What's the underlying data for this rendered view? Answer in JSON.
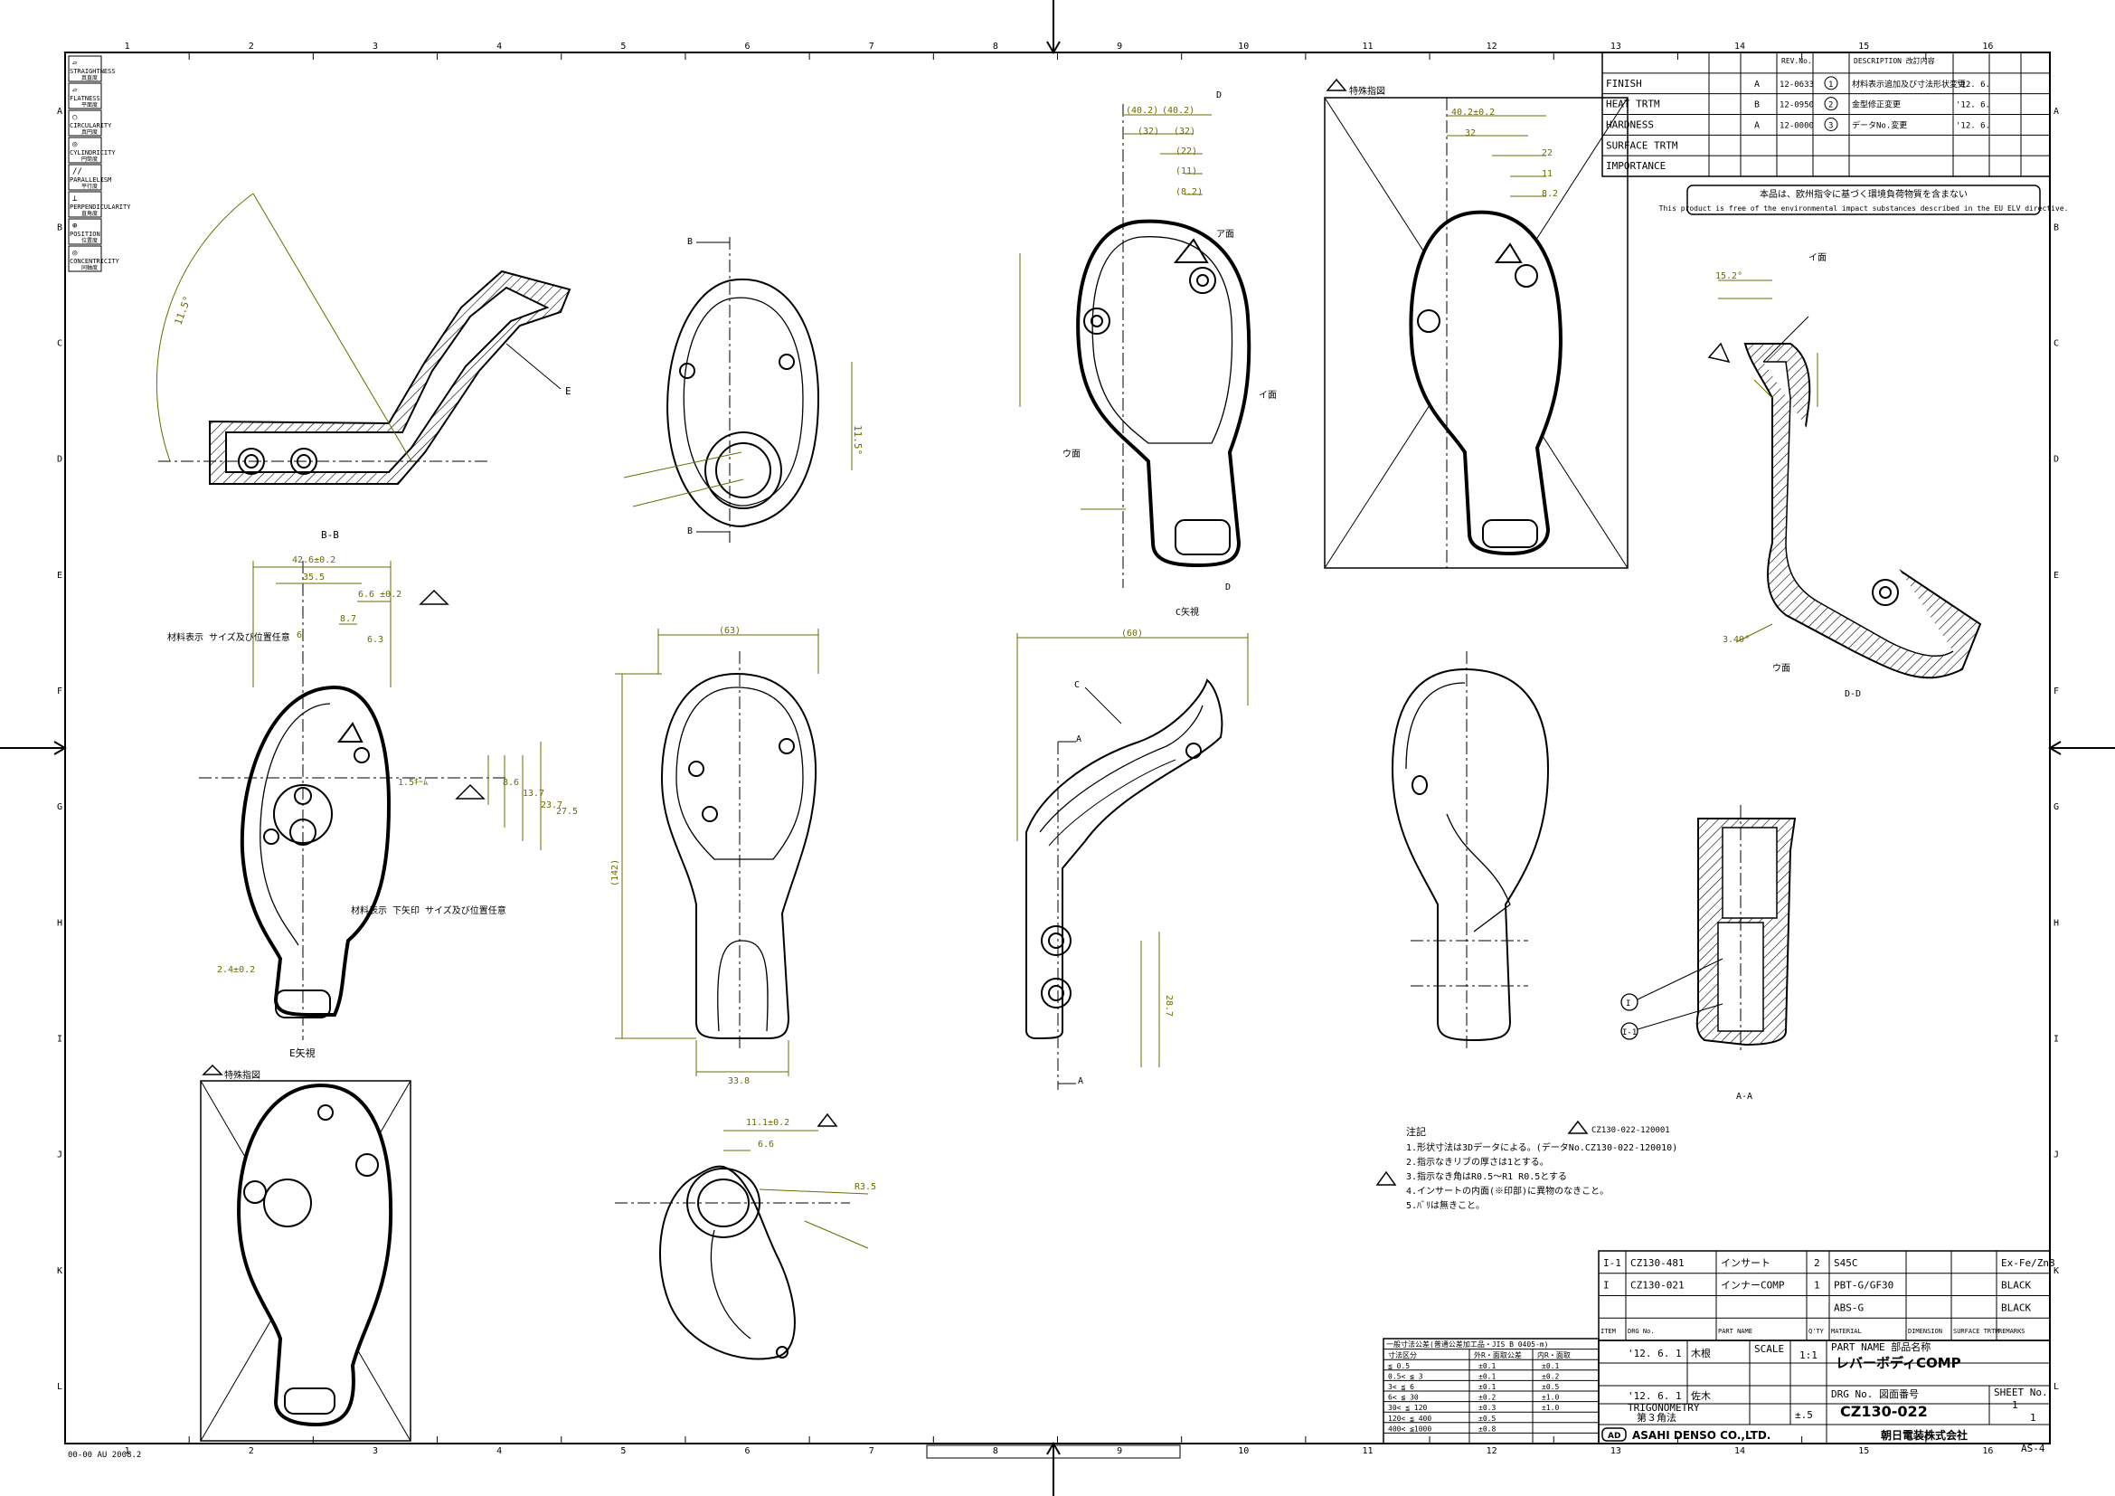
{
  "frame": {
    "col_numbers": [
      "1",
      "2",
      "3",
      "4",
      "5",
      "6",
      "7",
      "8",
      "9",
      "10",
      "11",
      "12",
      "13",
      "14",
      "15",
      "16"
    ],
    "row_letters": [
      "A",
      "B",
      "C",
      "D",
      "E",
      "F",
      "G",
      "H",
      "I",
      "J",
      "K",
      "L"
    ],
    "corner_note": "00-00  AU 2008.2"
  },
  "symbols": [
    {
      "sym": "▱",
      "label": "STRAIGHTNESS",
      "jp": "真直度"
    },
    {
      "sym": "▱",
      "label": "FLATNESS",
      "jp": "平面度"
    },
    {
      "sym": "○",
      "label": "CIRCULARITY",
      "jp": "真円度"
    },
    {
      "sym": "◎",
      "label": "CYLINDRICITY",
      "jp": "円筒度"
    },
    {
      "sym": "//",
      "label": "PARALLELISM",
      "jp": "平行度"
    },
    {
      "sym": "⊥",
      "label": "PERPENDICULARITY",
      "jp": "直角度"
    },
    {
      "sym": "⊕",
      "label": "POSITION",
      "jp": "位置度"
    },
    {
      "sym": "◎",
      "label": "CONCENTRICITY",
      "jp": "同軸度"
    }
  ],
  "revision": {
    "headers": [
      "REV.No.",
      "DESCRIPTION 改訂内容"
    ],
    "left_labels": [
      "FINISH",
      "HEAT TRTM",
      "HARDNESS",
      "SURFACE TRTM",
      "IMPORTANCE"
    ],
    "rows": [
      {
        "mark": "A",
        "no": "12-0633",
        "circle": "1",
        "text": "材料表示追加及び寸法形状変更",
        "date": "'12. 6."
      },
      {
        "mark": "B",
        "no": "12-0950",
        "circle": "2",
        "text": "金型修正変更",
        "date": "'12. 6."
      },
      {
        "mark": "A",
        "no": "12-0000",
        "circle": "3",
        "text": "データNo.変更",
        "date": "'12. 6."
      }
    ]
  },
  "env_note": {
    "jp": "本品は、欧州指令に基づく環境負荷物質を含まない",
    "en": "This product is free of the environmental impact substances described in the EU ELV directive."
  },
  "labels": {
    "section_bb": "B-B",
    "section_dd": "D-D",
    "section_aa": "A-A",
    "view_e": "E矢視",
    "view_c": "C矢視",
    "detail": "特殊指図",
    "cut_b": "B",
    "cut_d": "D",
    "cut_a": "A",
    "cut_c": "C",
    "cut_e": "E",
    "cut_a2": "A",
    "area_a": "ア面",
    "area_i": "イ面",
    "area_u": "ウ面",
    "note_material": "材料表示 サイズ及び位置任意",
    "note_material2": "材料表示 下矢印 サイズ及び位置任意",
    "balloon1": "I",
    "balloon2": "I-1",
    "tri_ref": "CZ130-022-120001"
  },
  "dims": {
    "a1": "(40.2)",
    "a2": "(40.2)",
    "a3": "(32)",
    "a4": "(32)",
    "a5": "(22)",
    "a6": "(11)",
    "a7": "(8.2)",
    "b1": "40.2±0.2",
    "b2": "40.2±0.2",
    "b3": "32",
    "b4": "22",
    "b5": "22",
    "b6": "11",
    "b7": "8.2",
    "c1": "42.6±0.2",
    "c2": "35.5",
    "c3": "35.5",
    "c4": "6.6 ±0.2",
    "c5": "8.7",
    "c6": "6.3",
    "c7": "6",
    "c8": "1.5ｷｰﾑ",
    "c9": "8.6",
    "c10": "13.7",
    "c11": "23.7",
    "c12": "27.5",
    "c13": "2.4±0.2",
    "d1": "(63)",
    "d2": "(63)",
    "d3": "(142)",
    "d4": "(142)",
    "d5": "33.8",
    "d6": "33.8",
    "e1": "(60)",
    "e2": "(60)",
    "e3": "28.7",
    "e4": "28.7",
    "f1": "11.1±0.2",
    "f2": "6.6",
    "f3": "R3.5",
    "f4": "11.5°",
    "f5": "11.5°",
    "f6": "15.2°",
    "f7": "3.40°"
  },
  "notes": {
    "title": "注記",
    "lines": [
      "1.形状寸法は3Dデータによる。(データNo.CZ130-022-120010)",
      "2.指示なきリブの厚さは1とする。",
      "3.指示なき角はR0.5〜R1  R0.5とする",
      "4.インサートの内面(※印部)に異物のなきこと。",
      "5.ﾊﾞﾘは無きこと。"
    ]
  },
  "tolerance": {
    "title": "一般寸法公差(普通公差加工品・JIS B 0405-m)",
    "headers": [
      "寸法区分",
      "外R・面取公差",
      "内R・面取"
    ],
    "rows": [
      [
        "≦ 0.5",
        "±0.1",
        "±0.1"
      ],
      [
        "0.5< ≦ 3",
        "±0.1",
        "±0.2"
      ],
      [
        "3< ≦ 6",
        "±0.1",
        "±0.5"
      ],
      [
        "6< ≦ 30",
        "±0.2",
        "±1.0"
      ],
      [
        "30< ≦ 120",
        "±0.3",
        "±1.0"
      ],
      [
        "120< ≦ 400",
        "±0.5",
        ""
      ],
      [
        "400< ≦1000",
        "±0.8",
        ""
      ]
    ]
  },
  "bom": {
    "rows": [
      {
        "item": "I-1",
        "no": "CZ130-481",
        "name": "インサート",
        "qty": "2",
        "material": "S45C",
        "surface": "Ex-Fe/Zn8"
      },
      {
        "item": "I",
        "no": "CZ130-021",
        "name": "インナーCOMP",
        "qty": "1",
        "material": "PBT-G/GF30",
        "surface": "BLACK"
      },
      {
        "item": "",
        "no": "",
        "name": "",
        "qty": "",
        "material": "ABS-G",
        "surface": "BLACK"
      }
    ],
    "headers": [
      "ITEM",
      "DRG No.",
      "PART NAME",
      "Q'TY",
      "MATERIAL",
      "DIMENSION",
      "SURFACE TRTM",
      "REMARKS"
    ]
  },
  "title_block": {
    "date1": "'12. 6. 1",
    "drawn": "木根",
    "date2": "'12. 6. 1",
    "checked": "佐木",
    "scale_label": "SCALE",
    "scale": "1:1",
    "projection_label": "TRIGONOMETRY",
    "projection": "第３角法",
    "general_tol": "±.5",
    "part_name_label": "PART NAME 部品名称",
    "part_name": "レバーボディCOMP",
    "drg_label": "DRG No. 図面番号",
    "drg_no": "CZ130-022",
    "sheet_label": "SHEET No.",
    "sheet": "1",
    "sheet_total": "1",
    "company_en": "ASAHI DENSO CO.,LTD.",
    "company_jp": "朝日電装株式会社",
    "logo": "AD",
    "paper": "AS-4"
  },
  "colors": {
    "line": "#000000",
    "dimension": "#6b6b00",
    "hatch": "#000000"
  }
}
